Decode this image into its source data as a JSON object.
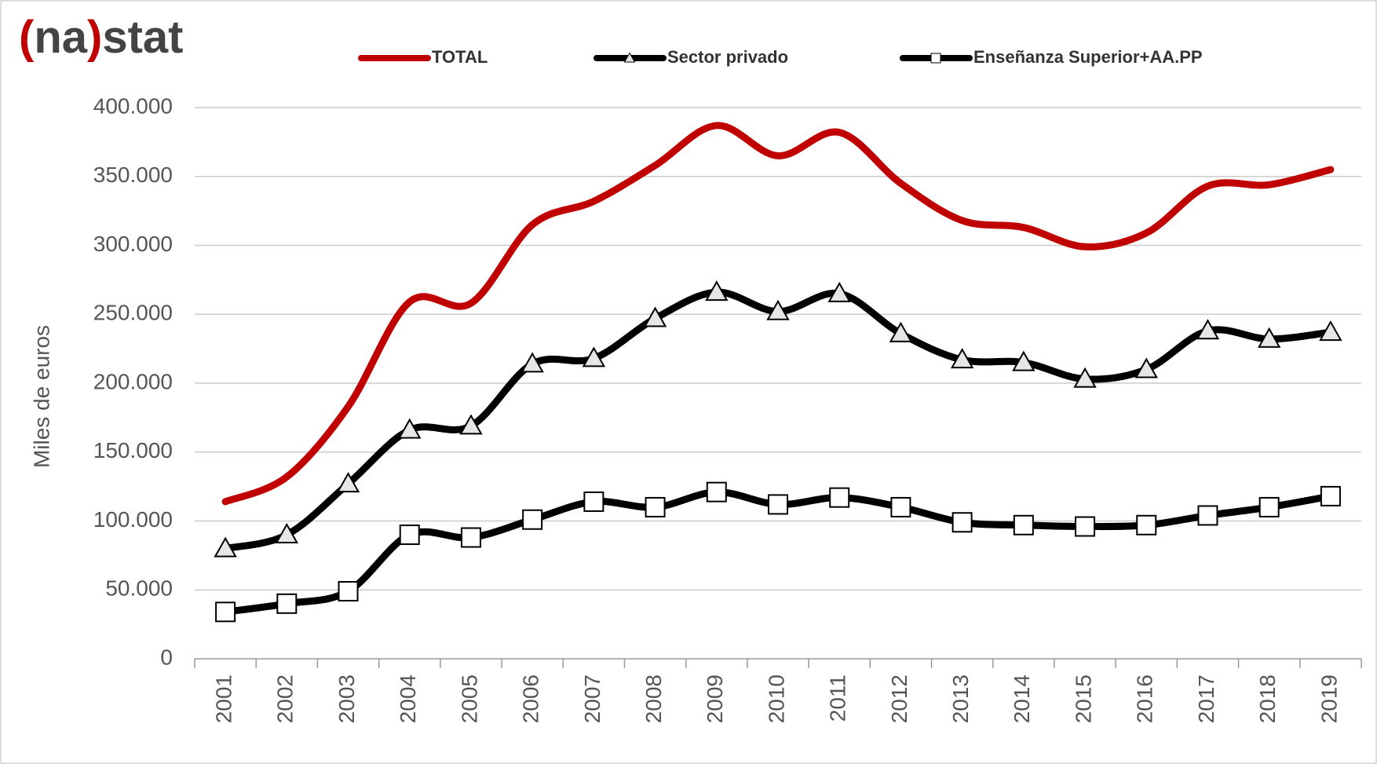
{
  "logo": [
    "(",
    "na",
    ")",
    "stat"
  ],
  "chart_data": {
    "type": "line",
    "y_label": "Miles de euros",
    "categories": [
      "2001",
      "2002",
      "2003",
      "2004",
      "2005",
      "2006",
      "2007",
      "2008",
      "2009",
      "2010",
      "2011",
      "2012",
      "2013",
      "2014",
      "2015",
      "2016",
      "2017",
      "2018",
      "2019"
    ],
    "series": [
      {
        "name": "TOTAL",
        "color": "#c00000",
        "marker": "none",
        "values": [
          114000,
          132000,
          183000,
          259000,
          258000,
          315000,
          332000,
          358000,
          387000,
          365000,
          382000,
          345000,
          318000,
          313000,
          299000,
          309000,
          343000,
          344000,
          355000
        ]
      },
      {
        "name": "Sector privado",
        "color": "#000000",
        "marker": "triangle",
        "values": [
          80000,
          90000,
          127000,
          166000,
          169000,
          214000,
          218000,
          247000,
          266000,
          252000,
          265000,
          236000,
          217000,
          215000,
          203000,
          210000,
          238000,
          232000,
          237000
        ]
      },
      {
        "name": "Enseñanza Superior+AA.PP",
        "color": "#000000",
        "marker": "square",
        "values": [
          34000,
          40000,
          49000,
          90000,
          88000,
          101000,
          114000,
          110000,
          121000,
          112000,
          117000,
          110000,
          99000,
          97000,
          96000,
          97000,
          104000,
          110000,
          118000
        ]
      }
    ],
    "ylim": [
      0,
      400000
    ],
    "yticks": [
      0,
      {
        "value": 50000,
        "label": "50.000"
      },
      {
        "value": 100000,
        "label": "100.000"
      },
      {
        "value": 150000,
        "label": "150.000"
      },
      {
        "value": 200000,
        "label": "200.000"
      },
      {
        "value": 250000,
        "label": "250.000"
      },
      {
        "value": 300000,
        "label": "300.000"
      },
      {
        "value": 350000,
        "label": "350.000"
      },
      {
        "value": 400000,
        "label": "400.000"
      }
    ],
    "grid": true,
    "legend": "top"
  }
}
